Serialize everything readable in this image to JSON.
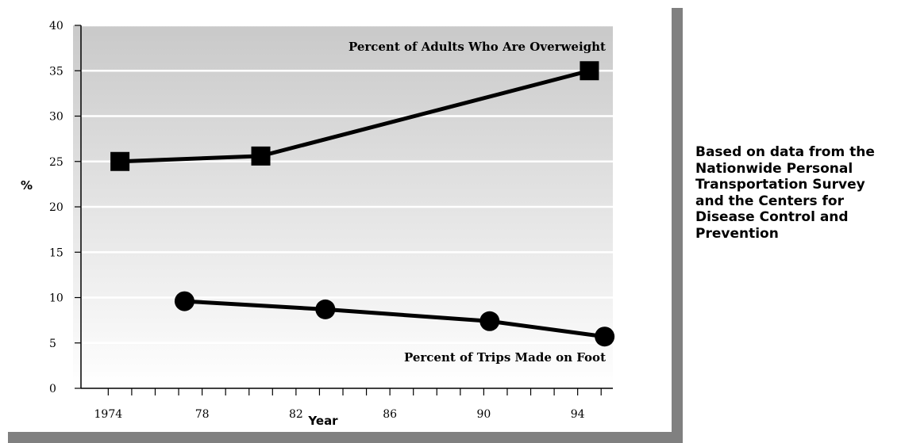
{
  "chart_data": {
    "type": "line",
    "xlabel": "Year",
    "ylabel": "%",
    "xlim": [
      1972.5,
      1995.5
    ],
    "ylim": [
      0,
      40
    ],
    "x_ticks": [
      1974,
      1978,
      1982,
      1986,
      1990,
      1994
    ],
    "x_tick_labels": [
      "1974",
      "78",
      "82",
      "86",
      "90",
      "94"
    ],
    "y_ticks": [
      0,
      5,
      10,
      15,
      20,
      25,
      30,
      35,
      40
    ],
    "y_tick_labels": [
      "0",
      "5",
      "10",
      "15",
      "20",
      "25",
      "30",
      "35",
      "40"
    ],
    "grid": true,
    "series": [
      {
        "name": "Percent of Adults Who Are Overweight",
        "marker": "square",
        "x": [
          1974.5,
          1980.5,
          1994.5
        ],
        "y": [
          25,
          25.6,
          35
        ]
      },
      {
        "name": "Percent of Trips Made on Foot",
        "marker": "circle",
        "x": [
          1977.25,
          1983.25,
          1990.25,
          1995.15
        ],
        "y": [
          9.6,
          8.7,
          7.4,
          5.7
        ]
      }
    ],
    "colors": {
      "line": "#000000",
      "plot_top": "#c9c9c9",
      "plot_bottom": "#ffffff",
      "grid": "#ffffff",
      "frame_shadow": "#808080"
    }
  },
  "note": "Based on data from the\nNationwide Personal\nTransportation Survey\nand the Centers for\nDisease Control and\nPrevention"
}
